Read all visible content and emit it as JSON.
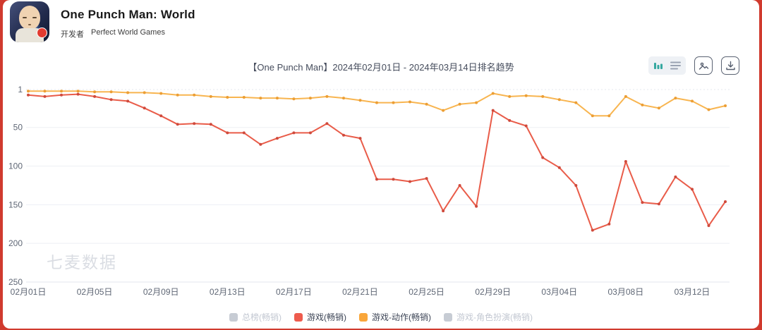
{
  "header": {
    "app_title": "One Punch Man: World",
    "developer_label": "开发者",
    "developer_name": "Perfect World Games"
  },
  "chart_data": {
    "type": "line",
    "title": "【One Punch Man】2024年02月01日 - 2024年03月14日排名趋势",
    "watermark": "七麦数据",
    "y_axis": {
      "inverted": true,
      "ticks": [
        1,
        50,
        100,
        150,
        200,
        250
      ],
      "range": [
        1,
        250
      ]
    },
    "x_tick_labels": [
      "02月01日",
      "02月05日",
      "02月09日",
      "02月13日",
      "02月17日",
      "02月21日",
      "02月25日",
      "02月29日",
      "03月04日",
      "03月08日",
      "03月12日"
    ],
    "dates": [
      "02月01日",
      "02月02日",
      "02月03日",
      "02月04日",
      "02月05日",
      "02月06日",
      "02月07日",
      "02月08日",
      "02月09日",
      "02月10日",
      "02月11日",
      "02月12日",
      "02月13日",
      "02月14日",
      "02月15日",
      "02月16日",
      "02月17日",
      "02月18日",
      "02月19日",
      "02月20日",
      "02月21日",
      "02月22日",
      "02月23日",
      "02月24日",
      "02月25日",
      "02月26日",
      "02月27日",
      "02月28日",
      "02月29日",
      "03月01日",
      "03月02日",
      "03月03日",
      "03月04日",
      "03月05日",
      "03月06日",
      "03月07日",
      "03月08日",
      "03月09日",
      "03月10日",
      "03月11日",
      "03月12日",
      "03月13日",
      "03月14日"
    ],
    "series": [
      {
        "name": "游戏(畅销)",
        "color": "#e95c49",
        "dot_color": "#cf4a3c",
        "values": [
          8,
          10,
          8,
          7,
          10,
          14,
          16,
          25,
          35,
          46,
          45,
          46,
          57,
          57,
          72,
          64,
          57,
          57,
          45,
          60,
          64,
          117,
          117,
          120,
          116,
          158,
          125,
          152,
          28,
          41,
          48,
          89,
          102,
          125,
          183,
          175,
          94,
          147,
          149,
          114,
          130,
          177,
          146
        ]
      },
      {
        "name": "游戏-动作(畅销)",
        "color": "#f8b550",
        "dot_color": "#ec9e34",
        "values": [
          3,
          3,
          3,
          3,
          4,
          4,
          5,
          5,
          6,
          8,
          8,
          10,
          11,
          11,
          12,
          12,
          13,
          12,
          10,
          12,
          15,
          18,
          18,
          17,
          20,
          28,
          20,
          18,
          6,
          10,
          9,
          10,
          14,
          18,
          35,
          35,
          10,
          21,
          25,
          12,
          16,
          27,
          22
        ]
      }
    ],
    "legend": [
      {
        "label": "总榜(畅销)",
        "color": "#c7ccd4",
        "enabled": false
      },
      {
        "label": "游戏(畅销)",
        "color": "#ee5b4d",
        "enabled": true
      },
      {
        "label": "游戏-动作(畅销)",
        "color": "#f9a63a",
        "enabled": true
      },
      {
        "label": "游戏-角色扮演(畅销)",
        "color": "#c7ccd4",
        "enabled": false
      }
    ],
    "style": {
      "grid_color": "#edeff4",
      "axis_line_color": "#e3e6ec",
      "tick_text_color": "#5f6775",
      "watermark_color": "#dadde3",
      "toggle_active_color": "#35a8a0",
      "toggle_inactive_color": "#9aa3b2",
      "tool_icon_color": "#565e6e"
    }
  }
}
